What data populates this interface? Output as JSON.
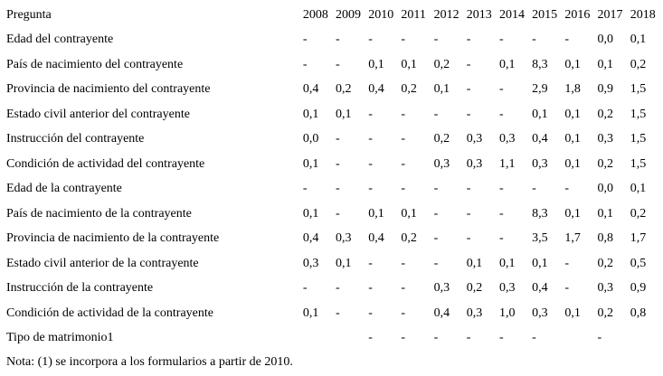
{
  "table": {
    "header": {
      "question_label": "Pregunta",
      "years": [
        "2008",
        "2009",
        "2010",
        "2011",
        "2012",
        "2013",
        "2014",
        "2015",
        "2016",
        "2017",
        "2018"
      ]
    },
    "rows": [
      {
        "label": "Edad del contrayente",
        "values": [
          "-",
          "-",
          "-",
          "-",
          "-",
          "-",
          "-",
          "-",
          "-",
          "0,0",
          "0,1"
        ]
      },
      {
        "label": "País de nacimiento del contrayente",
        "values": [
          "-",
          "-",
          "0,1",
          "0,1",
          "0,2",
          "-",
          "0,1",
          "8,3",
          "0,1",
          "0,1",
          "0,2"
        ]
      },
      {
        "label": "Provincia de nacimiento del contrayente",
        "values": [
          "0,4",
          "0,2",
          "0,4",
          "0,2",
          "0,1",
          "-",
          "-",
          "2,9",
          "1,8",
          "0,9",
          "1,5"
        ]
      },
      {
        "label": "Estado civil anterior del contrayente",
        "values": [
          "0,1",
          "0,1",
          "-",
          "-",
          "-",
          "-",
          "-",
          "0,1",
          "0,1",
          "0,2",
          "1,5"
        ]
      },
      {
        "label": "Instrucción del contrayente",
        "values": [
          "0,0",
          "-",
          "-",
          "-",
          "0,2",
          "0,3",
          "0,3",
          "0,4",
          "0,1",
          "0,3",
          "1,5"
        ]
      },
      {
        "label": "Condición de actividad del contrayente",
        "values": [
          "0,1",
          "-",
          "-",
          "-",
          "0,3",
          "0,3",
          "1,1",
          "0,3",
          "0,1",
          "0,2",
          "1,5"
        ]
      },
      {
        "label": "Edad de la contrayente",
        "values": [
          "-",
          "-",
          "-",
          "-",
          "-",
          "-",
          "-",
          "-",
          "-",
          "0,0",
          "0,1"
        ]
      },
      {
        "label": "País de nacimiento de la contrayente",
        "values": [
          "0,1",
          "-",
          "0,1",
          "0,1",
          "-",
          "-",
          "-",
          "8,3",
          "0,1",
          "0,1",
          "0,2"
        ]
      },
      {
        "label": "Provincia de nacimiento de la contrayente",
        "values": [
          "0,4",
          "0,3",
          "0,4",
          "0,2",
          "-",
          "-",
          "-",
          "3,5",
          "1,7",
          "0,8",
          "1,7"
        ]
      },
      {
        "label": "Estado civil anterior de la contrayente",
        "values": [
          "0,3",
          "0,1",
          "-",
          "-",
          "-",
          "0,1",
          "0,1",
          "0,1",
          "-",
          "0,2",
          "0,5"
        ]
      },
      {
        "label": "Instrucción de la contrayente",
        "values": [
          "-",
          "-",
          "-",
          "-",
          "0,3",
          "0,2",
          "0,3",
          "0,4",
          "-",
          "0,3",
          "0,9"
        ]
      },
      {
        "label": "Condición de actividad de la contrayente",
        "values": [
          "0,1",
          "-",
          "-",
          "-",
          "0,4",
          "0,3",
          "1,0",
          "0,3",
          "0,1",
          "0,2",
          "0,8"
        ]
      },
      {
        "label": "Tipo de matrimonio1",
        "values": [
          "",
          "",
          "-",
          "-",
          "-",
          "-",
          "-",
          "-",
          "",
          "-",
          ""
        ]
      }
    ],
    "note": "Nota: (1) se incorpora a los formularios a partir de 2010."
  }
}
